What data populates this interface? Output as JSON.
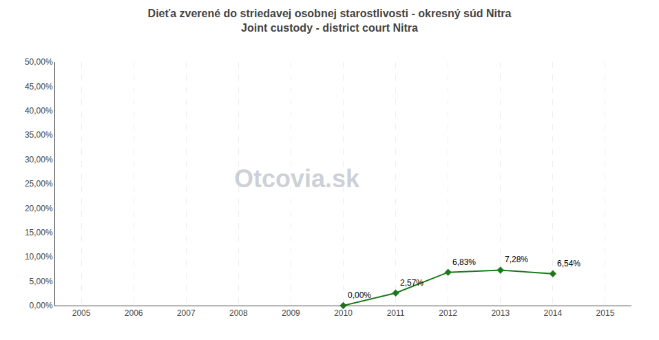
{
  "chart_data": {
    "type": "line",
    "title": "Dieťa zverené do striedavej osobnej starostlivosti - okresný súd Nitra",
    "subtitle": "Joint custody - district court Nitra",
    "x": [
      2010,
      2011,
      2012,
      2013,
      2014
    ],
    "values": [
      0.0,
      0.0257,
      0.0683,
      0.0728,
      0.0654
    ],
    "value_labels": [
      "0,00%",
      "2,57%",
      "6,83%",
      "7,28%",
      "6,54%"
    ],
    "data_labels": true,
    "color": "#1a7a1a",
    "marker": "diamond",
    "line_style": "solid",
    "xlim": [
      2004.5,
      2015.5
    ],
    "xticks": [
      2005,
      2006,
      2007,
      2008,
      2009,
      2010,
      2011,
      2012,
      2013,
      2014,
      2015
    ],
    "ylim": [
      0.0,
      0.5
    ],
    "yticks": [
      {
        "value": 0.0,
        "label": "0,00%"
      },
      {
        "value": 0.05,
        "label": "5,00%"
      },
      {
        "value": 0.1,
        "label": "10,00%"
      },
      {
        "value": 0.15,
        "label": "15,00%"
      },
      {
        "value": 0.2,
        "label": "20,00%"
      },
      {
        "value": 0.25,
        "label": "25,00%"
      },
      {
        "value": 0.3,
        "label": "30,00%"
      },
      {
        "value": 0.35,
        "label": "35,00%"
      },
      {
        "value": 0.4,
        "label": "40,00%"
      },
      {
        "value": 0.45,
        "label": "45,00%"
      },
      {
        "value": 0.5,
        "label": "50,00%"
      }
    ],
    "grid": "x",
    "annotations": [
      "Otcovia.sk"
    ]
  }
}
